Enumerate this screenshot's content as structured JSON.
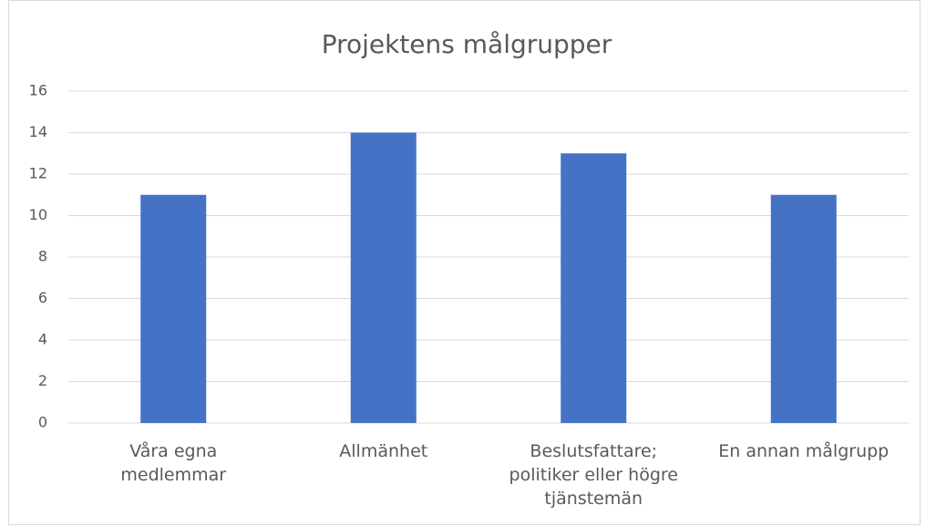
{
  "chart_data": {
    "type": "bar",
    "title": "Projektens målgrupper",
    "categories": [
      "Våra egna medlemmar",
      "Allmänhet",
      "Beslutsfattare; politiker eller högre tjänstemän",
      "En annan målgrupp"
    ],
    "values": [
      11,
      14,
      13,
      11
    ],
    "color": "#4472c4",
    "ylim": [
      0,
      16
    ],
    "yticks": [
      0,
      2,
      4,
      6,
      8,
      10,
      12,
      14,
      16
    ],
    "grid": true
  }
}
